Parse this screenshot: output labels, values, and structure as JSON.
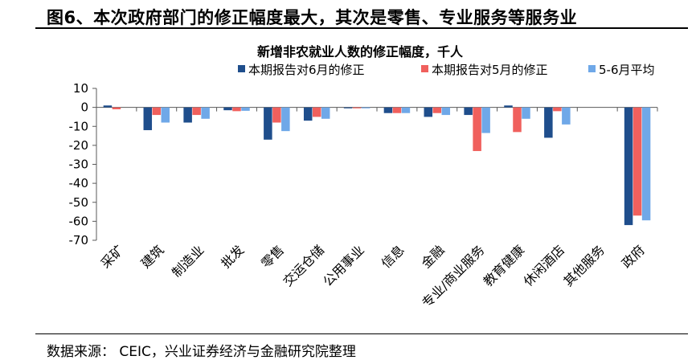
{
  "figure_title": "图6、本次政府部门的修正幅度最大，其次是零售、专业服务等服务业",
  "source": "数据来源：  CEIC，兴业证券经济与金融研究院整理",
  "colors": {
    "june_revision": "#1f4e8c",
    "may_revision": "#f0605d",
    "avg": "#6fa8e8",
    "axis": "#595959"
  },
  "chart_data": {
    "type": "bar",
    "title": "新增非农就业人数的修正幅度，千人",
    "xlabel": "",
    "ylabel": "",
    "ylim": [
      -70,
      10
    ],
    "yticks": [
      10,
      0,
      -10,
      -20,
      -30,
      -40,
      -50,
      -60,
      -70
    ],
    "grid": false,
    "legend_position": "top-right",
    "categories": [
      "采矿",
      "建筑",
      "制造业",
      "批发",
      "零售",
      "交运仓储",
      "公用事业",
      "信息",
      "金融",
      "专业/商业服务",
      "教育健康",
      "休闲酒店",
      "其他服务",
      "政府"
    ],
    "series": [
      {
        "name": "本期报告对6月的修正",
        "color": "#1f4e8c",
        "values": [
          1,
          -12,
          -8,
          -1.5,
          -17,
          -7,
          -0.5,
          -3,
          -5,
          -4,
          1,
          -16,
          0,
          -62
        ]
      },
      {
        "name": "本期报告对5月的修正",
        "color": "#f0605d",
        "values": [
          -1,
          -4,
          -4,
          -2,
          -8,
          -5,
          -0.5,
          -3,
          -3,
          -23,
          -13,
          -2,
          0,
          -57
        ]
      },
      {
        "name": "5-6月平均",
        "color": "#6fa8e8",
        "values": [
          0,
          -8,
          -6,
          -1.8,
          -12.5,
          -6,
          -0.5,
          -3,
          -4,
          -13.5,
          -6,
          -9,
          0,
          -59.5
        ]
      }
    ]
  }
}
